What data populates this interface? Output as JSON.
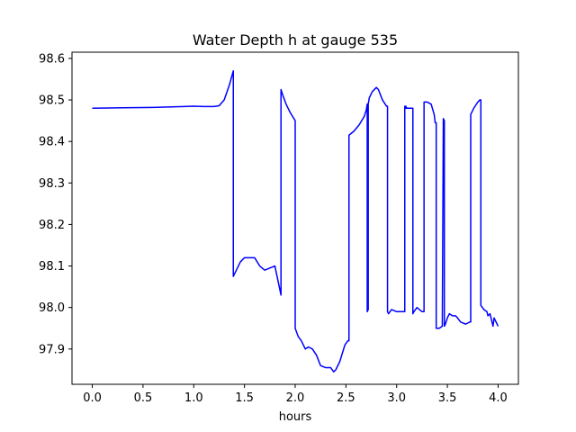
{
  "chart_data": {
    "type": "line",
    "title": "Water Depth h at gauge 535",
    "xlabel": "hours",
    "ylabel": "",
    "xlim": [
      -0.2,
      4.2
    ],
    "ylim": [
      97.815,
      98.615
    ],
    "xticks": [
      {
        "value": 0.0,
        "label": "0.0"
      },
      {
        "value": 0.5,
        "label": "0.5"
      },
      {
        "value": 1.0,
        "label": "1.0"
      },
      {
        "value": 1.5,
        "label": "1.5"
      },
      {
        "value": 2.0,
        "label": "2.0"
      },
      {
        "value": 2.5,
        "label": "2.5"
      },
      {
        "value": 3.0,
        "label": "3.0"
      },
      {
        "value": 3.5,
        "label": "3.5"
      },
      {
        "value": 4.0,
        "label": "4.0"
      }
    ],
    "yticks": [
      {
        "value": 97.9,
        "label": "97.9"
      },
      {
        "value": 98.0,
        "label": "98.0"
      },
      {
        "value": 98.1,
        "label": "98.1"
      },
      {
        "value": 98.2,
        "label": "98.2"
      },
      {
        "value": 98.3,
        "label": "98.3"
      },
      {
        "value": 98.4,
        "label": "98.4"
      },
      {
        "value": 98.5,
        "label": "98.5"
      },
      {
        "value": 98.6,
        "label": "98.6"
      }
    ],
    "grid": false,
    "legend": "none",
    "series": [
      {
        "color": "#0000ff",
        "x": [
          0.0,
          0.3,
          0.6,
          0.9,
          1.0,
          1.1,
          1.2,
          1.25,
          1.3,
          1.35,
          1.39,
          1.39,
          1.42,
          1.46,
          1.5,
          1.55,
          1.6,
          1.65,
          1.7,
          1.75,
          1.8,
          1.86,
          1.86,
          1.88,
          1.91,
          1.95,
          2.0,
          2.0,
          2.03,
          2.06,
          2.1,
          2.13,
          2.17,
          2.21,
          2.25,
          2.3,
          2.35,
          2.38,
          2.4,
          2.44,
          2.49,
          2.52,
          2.53,
          2.53,
          2.58,
          2.63,
          2.68,
          2.7,
          2.71,
          2.71,
          2.72,
          2.72,
          2.73,
          2.76,
          2.8,
          2.82,
          2.86,
          2.9,
          2.91,
          2.91,
          2.92,
          2.95,
          3.0,
          3.05,
          3.08,
          3.08,
          3.09,
          3.09,
          3.1,
          3.12,
          3.15,
          3.16,
          3.16,
          3.17,
          3.2,
          3.25,
          3.27,
          3.27,
          3.3,
          3.34,
          3.37,
          3.38,
          3.39,
          3.39,
          3.42,
          3.45,
          3.46,
          3.46,
          3.47,
          3.47,
          3.48,
          3.5,
          3.52,
          3.55,
          3.58,
          3.6,
          3.63,
          3.68,
          3.72,
          3.73,
          3.73,
          3.76,
          3.8,
          3.82,
          3.83,
          3.83,
          3.86,
          3.89,
          3.9,
          3.92,
          3.93,
          3.95,
          3.96,
          3.97,
          4.0
        ],
        "y": [
          98.48,
          98.481,
          98.482,
          98.484,
          98.485,
          98.484,
          98.484,
          98.486,
          98.5,
          98.535,
          98.57,
          98.075,
          98.09,
          98.11,
          98.12,
          98.12,
          98.12,
          98.1,
          98.09,
          98.095,
          98.1,
          98.03,
          98.525,
          98.51,
          98.49,
          98.47,
          98.45,
          97.95,
          97.93,
          97.92,
          97.9,
          97.905,
          97.9,
          97.885,
          97.86,
          97.855,
          97.855,
          97.845,
          97.85,
          97.87,
          97.91,
          97.92,
          97.92,
          98.415,
          98.425,
          98.44,
          98.46,
          98.475,
          98.49,
          97.99,
          97.995,
          98.49,
          98.505,
          98.52,
          98.53,
          98.525,
          98.5,
          98.485,
          98.485,
          97.99,
          97.985,
          97.995,
          97.99,
          97.99,
          97.99,
          98.485,
          98.48,
          98.485,
          98.48,
          98.48,
          98.48,
          98.48,
          97.985,
          97.99,
          98.0,
          97.99,
          97.99,
          98.495,
          98.495,
          98.49,
          98.465,
          98.445,
          98.445,
          97.95,
          97.95,
          97.955,
          98.445,
          98.455,
          98.45,
          97.955,
          97.96,
          97.975,
          97.985,
          97.98,
          97.98,
          97.975,
          97.965,
          97.96,
          97.965,
          97.965,
          98.465,
          98.48,
          98.495,
          98.5,
          98.5,
          98.005,
          97.995,
          97.99,
          97.98,
          97.985,
          97.975,
          97.955,
          97.975,
          97.97,
          97.955
        ]
      }
    ]
  }
}
